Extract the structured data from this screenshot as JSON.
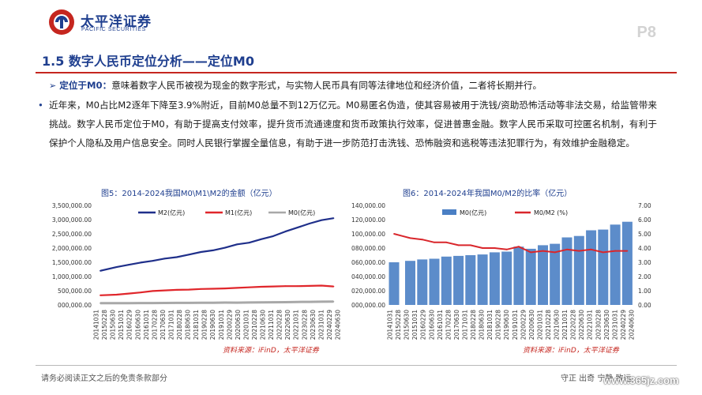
{
  "header": {
    "logo_cn": "太平洋证券",
    "logo_en": "PACIFIC SECURITIES",
    "page_number": "P8"
  },
  "section": {
    "title": "1.5 数字人民币定位分析——定位M0"
  },
  "body": {
    "p1_lead": "定位于M0：",
    "p1_text": "意味着数字人民币被视为现金的数字形式，与实物人民币具有同等法律地位和经济价值，二者将长期并行。",
    "p2_text": "近年来，M0占比M2逐年下降至3.9%附近，目前M0总量不到12万亿元。M0易匿名伪造，使其容易被用于洗钱/资助恐怖活动等非法交易，给监管带来挑战。数字人民币定位于M0，有助于提高支付效率，提升货币流通速度和货币政策执行效率，促进普惠金融。数字人民币采取可控匿名机制，有利于保护个人隐私及用户信息安全。同时人民银行掌握全量信息，有助于进一步防范打击洗钱、恐怖融资和逃税等违法犯罪行为，有效维护金融稳定。"
  },
  "figures": {
    "fig5_title": "图5：2014-2024我国M0\\M1\\M2的金额（亿元）",
    "fig6_title": "图6：2014-2024年我国M0/M2的比率（亿元）",
    "source": "资料来源：iFinD，太平洋证券"
  },
  "footer": {
    "disclaimer": "请务必阅读正文之后的免责条款部分",
    "motto": "守正  出奇  宁静  致远",
    "watermark": "www.365jz.com"
  },
  "colors": {
    "brand_blue": "#1f3f8f",
    "accent_red": "#c5261f",
    "m2_line": "#1f2f8a",
    "m1_line": "#e0262b",
    "m0_line": "#a8a8a8",
    "m0_bar": "#4a7fc4",
    "ratio_line": "#d9262b"
  },
  "chart_data": [
    {
      "type": "line",
      "title": "图5：2014-2024我国M0\\M1\\M2的金额（亿元）",
      "x_ticks": [
        "20141031",
        "20150228",
        "20150630",
        "20151031",
        "20160229",
        "20160630",
        "20161031",
        "20170228",
        "20170630",
        "20171031",
        "20180228",
        "20180630",
        "20181031",
        "20190228",
        "20190630",
        "20191031",
        "20200229",
        "20200630",
        "20201031",
        "20210228",
        "20210630",
        "20211031",
        "20220228",
        "20220630",
        "20221031",
        "20230228",
        "20230630",
        "20231031",
        "20240229",
        "20240630"
      ],
      "y_ticks": [
        "000,000.00",
        "500,000.00",
        "1,000,000.00",
        "1,500,000.00",
        "2,000,000.00",
        "2,500,000.00",
        "3,000,000.00",
        "3,500,000.00"
      ],
      "ylim": [
        0,
        3500000
      ],
      "legend": [
        "M2(亿元)",
        "M1(亿元)",
        "M0(亿元)"
      ],
      "x_years": [
        2014.83,
        2015.5,
        2016.0,
        2016.5,
        2017.0,
        2017.5,
        2018.0,
        2018.5,
        2019.0,
        2019.5,
        2020.0,
        2020.5,
        2021.0,
        2021.5,
        2022.0,
        2022.5,
        2023.0,
        2023.5,
        2024.0,
        2024.5
      ],
      "series": [
        {
          "name": "M2(亿元)",
          "values": [
            1200000,
            1330000,
            1410000,
            1490000,
            1550000,
            1630000,
            1680000,
            1770000,
            1860000,
            1920000,
            2010000,
            2130000,
            2190000,
            2310000,
            2420000,
            2580000,
            2720000,
            2860000,
            2980000,
            3050000
          ]
        },
        {
          "name": "M1(亿元)",
          "values": [
            340000,
            360000,
            400000,
            440000,
            490000,
            510000,
            530000,
            540000,
            560000,
            570000,
            580000,
            600000,
            620000,
            640000,
            650000,
            660000,
            660000,
            670000,
            680000,
            650000
          ]
        },
        {
          "name": "M0(亿元)",
          "values": [
            60000,
            62000,
            64000,
            66000,
            68000,
            70000,
            72000,
            72000,
            76000,
            77000,
            82000,
            80000,
            85000,
            88000,
            95000,
            97000,
            105000,
            107000,
            113000,
            116000
          ]
        }
      ]
    },
    {
      "type": "bar",
      "title": "图6：2014-2024年我国M0/M2的比率（亿元）",
      "x_ticks": [
        "20141031",
        "20150228",
        "20150630",
        "20151031",
        "20160229",
        "20160630",
        "20161031",
        "20170228",
        "20170630",
        "20171031",
        "20180228",
        "20180630",
        "20181031",
        "20190228",
        "20190630",
        "20191031",
        "20200229",
        "20200630",
        "20201031",
        "20210228",
        "20210630",
        "20211031",
        "20220228",
        "20220630",
        "20221031",
        "20230228",
        "20230630",
        "20231031",
        "20240229",
        "20240630"
      ],
      "y_left_ticks": [
        "000,000.00",
        "020,000.00",
        "040,000.00",
        "060,000.00",
        "080,000.00",
        "100,000.00",
        "120,000.00",
        "140,000.00"
      ],
      "y_right_ticks": [
        "0.00",
        "1.00",
        "2.00",
        "3.00",
        "4.00",
        "5.00",
        "6.00",
        "7.00"
      ],
      "ylim_left": [
        0,
        140000
      ],
      "ylim_right": [
        0,
        7
      ],
      "legend": [
        "M0(亿元)",
        "M0/M2  (%)"
      ],
      "x_years": [
        2014.83,
        2015.5,
        2016.0,
        2016.5,
        2017.0,
        2017.5,
        2018.0,
        2018.5,
        2019.0,
        2019.5,
        2020.0,
        2020.5,
        2021.0,
        2021.5,
        2022.0,
        2022.5,
        2023.0,
        2023.5,
        2024.0,
        2024.5
      ],
      "series": [
        {
          "name": "M0(亿元)",
          "values": [
            60000,
            62000,
            64000,
            65000,
            68000,
            69000,
            70000,
            71000,
            74000,
            75000,
            82000,
            79000,
            84000,
            86000,
            95000,
            97000,
            105000,
            106000,
            113000,
            117000
          ]
        },
        {
          "name": "M0/M2  (%)",
          "values": [
            5.0,
            4.7,
            4.6,
            4.4,
            4.4,
            4.2,
            4.2,
            4.0,
            4.0,
            3.9,
            4.1,
            3.7,
            3.8,
            3.7,
            3.9,
            3.8,
            3.9,
            3.7,
            3.8,
            3.8
          ]
        }
      ]
    }
  ]
}
